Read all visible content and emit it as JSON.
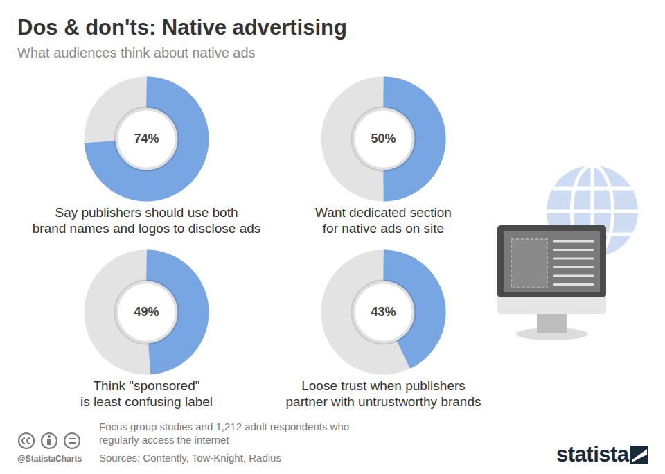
{
  "chart_data": {
    "type": "donut",
    "title": "Dos & don'ts: Native advertising",
    "subtitle": "What audiences think about native ads",
    "categories": [
      "Say publishers should use both\nbrand names and logos to disclose ads",
      "Want dedicated section\nfor native ads on site",
      "Think \"sponsored\"\nis least confusing label",
      "Loose trust when publishers\npartner with untrustworthy brands"
    ],
    "values": [
      74,
      50,
      49,
      43
    ],
    "value_labels": [
      "74%",
      "50%",
      "49%",
      "43%"
    ],
    "data_labels": true,
    "color": "#77a6e2",
    "note": "Focus group studies and 1,212 adult respondents who regularly access the internet",
    "source": "Sources: Contently, Tow-Knight, Radius",
    "credit": "@StatistaCharts",
    "brand": "statista"
  }
}
